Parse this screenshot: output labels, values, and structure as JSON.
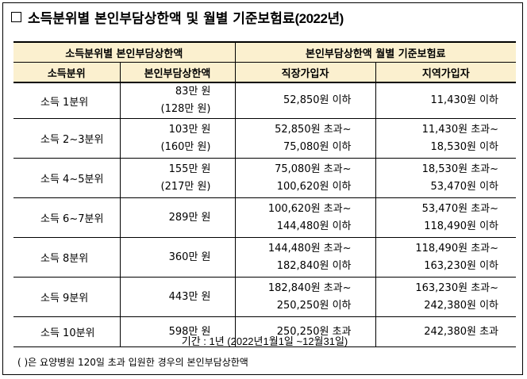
{
  "title": {
    "text": "소득분위별 본인부담상한액 및 월별 기준보험료",
    "year": "(2022년)"
  },
  "header": {
    "group1": "소득분위별 본인부담상한액",
    "group2": "본인부담상한액 월별 기준보험료",
    "col_income": "소득분위",
    "col_cap": "본인부담상한액",
    "col_employee": "직장가입자",
    "col_regional": "지역가입자"
  },
  "rows": [
    {
      "income": "소득 1분위",
      "cap": "83만 원",
      "cap_note": "(128만 원)",
      "emp1": "52,850원 이하",
      "emp2": "",
      "reg1": "11,430원 이하",
      "reg2": ""
    },
    {
      "income": "소득 2~3분위",
      "cap": "103만 원",
      "cap_note": "(160만 원)",
      "emp1": "52,850원 초과~",
      "emp2": "75,080원 이하",
      "reg1": "11,430원 초과~",
      "reg2": "18,530원 이하"
    },
    {
      "income": "소득 4~5분위",
      "cap": "155만 원",
      "cap_note": "(217만 원)",
      "emp1": "75,080원 초과~",
      "emp2": "100,620원 이하",
      "reg1": "18,530원 초과~",
      "reg2": "53,470원 이하"
    },
    {
      "income": "소득 6~7분위",
      "cap": "289만 원",
      "cap_note": "",
      "emp1": "100,620원 초과~",
      "emp2": "144,480원 이하",
      "reg1": "53,470원 초과~",
      "reg2": "118,490원 이하"
    },
    {
      "income": "소득 8분위",
      "cap": "360만 원",
      "cap_note": "",
      "emp1": "144,480원 초과~",
      "emp2": "182,840원 이하",
      "reg1": "118,490원 초과~",
      "reg2": "163,230원 이하"
    },
    {
      "income": "소득 9분위",
      "cap": "443만 원",
      "cap_note": "",
      "emp1": "182,840원 초과~",
      "emp2": "250,250원 이하",
      "reg1": "163,230원 초과~",
      "reg2": "242,380원 이하"
    },
    {
      "income": "소득 10분위",
      "cap": "598만 원",
      "cap_note": "",
      "emp1": "250,250원 초과",
      "emp2": "",
      "reg1": "242,380원 초과",
      "reg2": ""
    }
  ],
  "footer": {
    "period": "기간 : 1년 (2022년1월1일 ~12월31일)",
    "note": "( )은 요양병원 120일 초과 입원한 경우의 본인부담상한액"
  }
}
